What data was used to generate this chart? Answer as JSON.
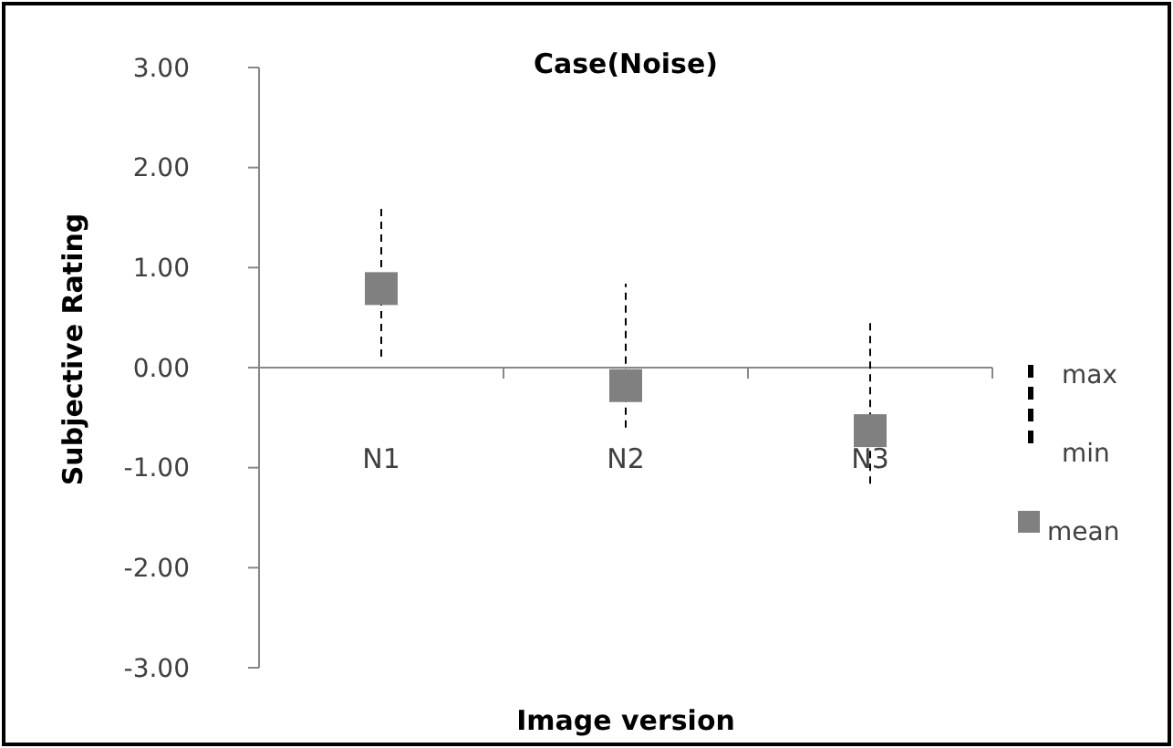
{
  "chart_data": {
    "type": "scatter",
    "title": "Case(Noise)",
    "xlabel": "Image version",
    "ylabel": "Subjective Rating",
    "categories": [
      "N1",
      "N2",
      "N3"
    ],
    "series": [
      {
        "name": "mean",
        "color": "#808080",
        "marker": "square",
        "values": [
          0.79,
          -0.18,
          -0.63
        ],
        "errors": [
          [
            0.11,
            1.63
          ],
          [
            -0.6,
            0.84
          ],
          [
            -1.16,
            0.49
          ]
        ]
      }
    ],
    "ylim": [
      -3,
      3
    ],
    "yticks": [
      {
        "value": -3,
        "label": "-3.00"
      },
      {
        "value": -2,
        "label": "-2.00"
      },
      {
        "value": -1,
        "label": "-1.00"
      },
      {
        "value": 0,
        "label": "0.00"
      },
      {
        "value": 1,
        "label": "1.00"
      },
      {
        "value": 2,
        "label": "2.00"
      },
      {
        "value": 3,
        "label": "3.00"
      }
    ],
    "annotations": [
      "max",
      "min"
    ],
    "legend": "right"
  }
}
